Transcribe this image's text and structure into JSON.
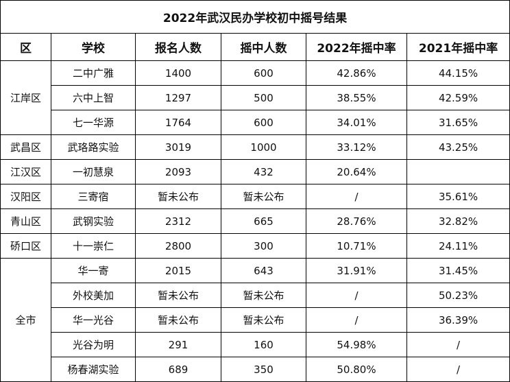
{
  "title": "2022年武汉民办学校初中摇号结果",
  "headers": [
    "区",
    "学校",
    "报名人数",
    "摇中人数",
    "2022年摇中率",
    "2021年摇中率"
  ],
  "rows": [
    {
      "district": "江岸区",
      "school": "二中广雅",
      "applicants": "1400",
      "selected": "600",
      "rate_2022": "42.86%",
      "rate_2021": "44.15%"
    },
    {
      "district": "",
      "school": "六中上智",
      "applicants": "1297",
      "selected": "500",
      "rate_2022": "38.55%",
      "rate_2021": "42.59%"
    },
    {
      "district": "",
      "school": "七一华源",
      "applicants": "1764",
      "selected": "600",
      "rate_2022": "34.01%",
      "rate_2021": "31.65%"
    },
    {
      "district": "武昌区",
      "school": "武珞路实验",
      "applicants": "3019",
      "selected": "1000",
      "rate_2022": "33.12%",
      "rate_2021": "43.25%"
    },
    {
      "district": "江汉区",
      "school": "一初慧泉",
      "applicants": "2093",
      "selected": "432",
      "rate_2022": "20.64%",
      "rate_2021": ""
    },
    {
      "district": "汉阳区",
      "school": "三寄宿",
      "applicants": "暂未公布",
      "selected": "暂未公布",
      "rate_2022": "/",
      "rate_2021": "35.61%"
    },
    {
      "district": "青山区",
      "school": "武钢实验",
      "applicants": "2312",
      "selected": "665",
      "rate_2022": "28.76%",
      "rate_2021": "32.82%"
    },
    {
      "district": "硚口区",
      "school": "十一崇仁",
      "applicants": "2800",
      "selected": "300",
      "rate_2022": "10.71%",
      "rate_2021": "24.11%"
    },
    {
      "district": "全市",
      "school": "华一寄",
      "applicants": "2015",
      "selected": "643",
      "rate_2022": "31.91%",
      "rate_2021": "31.45%"
    },
    {
      "district": "",
      "school": "外校美加",
      "applicants": "暂未公布",
      "selected": "暂未公布",
      "rate_2022": "/",
      "rate_2021": "50.23%"
    },
    {
      "district": "",
      "school": "华一光谷",
      "applicants": "暂未公布",
      "selected": "暂未公布",
      "rate_2022": "/",
      "rate_2021": "36.39%"
    },
    {
      "district": "",
      "school": "光谷为明",
      "applicants": "291",
      "selected": "160",
      "rate_2022": "54.98%",
      "rate_2021": "/"
    },
    {
      "district": "",
      "school": "杨春湖实验",
      "applicants": "689",
      "selected": "350",
      "rate_2022": "50.80%",
      "rate_2021": "/"
    }
  ]
}
